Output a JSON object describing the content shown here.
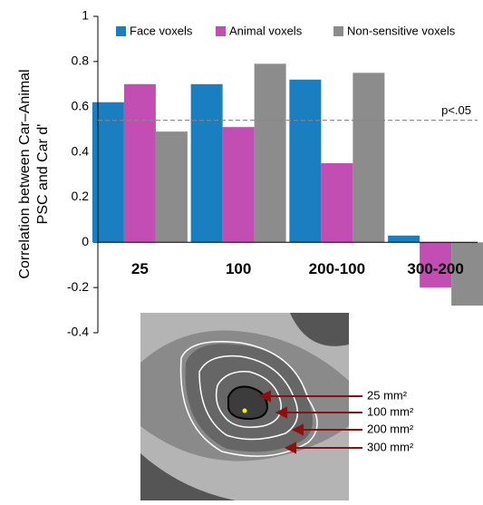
{
  "chart_data": {
    "type": "bar",
    "y_label_lines": [
      "Correlation between Car–Animal",
      "PSC and Car d'"
    ],
    "categories": [
      "25",
      "100",
      "200-100",
      "300-200"
    ],
    "series": [
      {
        "name": "Face voxels",
        "color": "#1a7fc1",
        "values": [
          0.62,
          0.7,
          0.72,
          0.03
        ]
      },
      {
        "name": "Animal voxels",
        "color": "#c24db3",
        "values": [
          0.7,
          0.51,
          0.35,
          -0.2
        ]
      },
      {
        "name": "Non-sensitive voxels",
        "color": "#8c8c8c",
        "values": [
          0.49,
          0.79,
          0.75,
          -0.28
        ]
      }
    ],
    "ylim": [
      -0.4,
      1
    ],
    "yticks": [
      -0.4,
      -0.2,
      0,
      0.2,
      0.4,
      0.6,
      0.8,
      1
    ],
    "reference_line": {
      "value": 0.54,
      "label": "p<.05"
    },
    "legend_position": "top"
  },
  "inset": {
    "labels": [
      "25 mm²",
      "100 mm²",
      "200 mm²",
      "300 mm²"
    ]
  }
}
